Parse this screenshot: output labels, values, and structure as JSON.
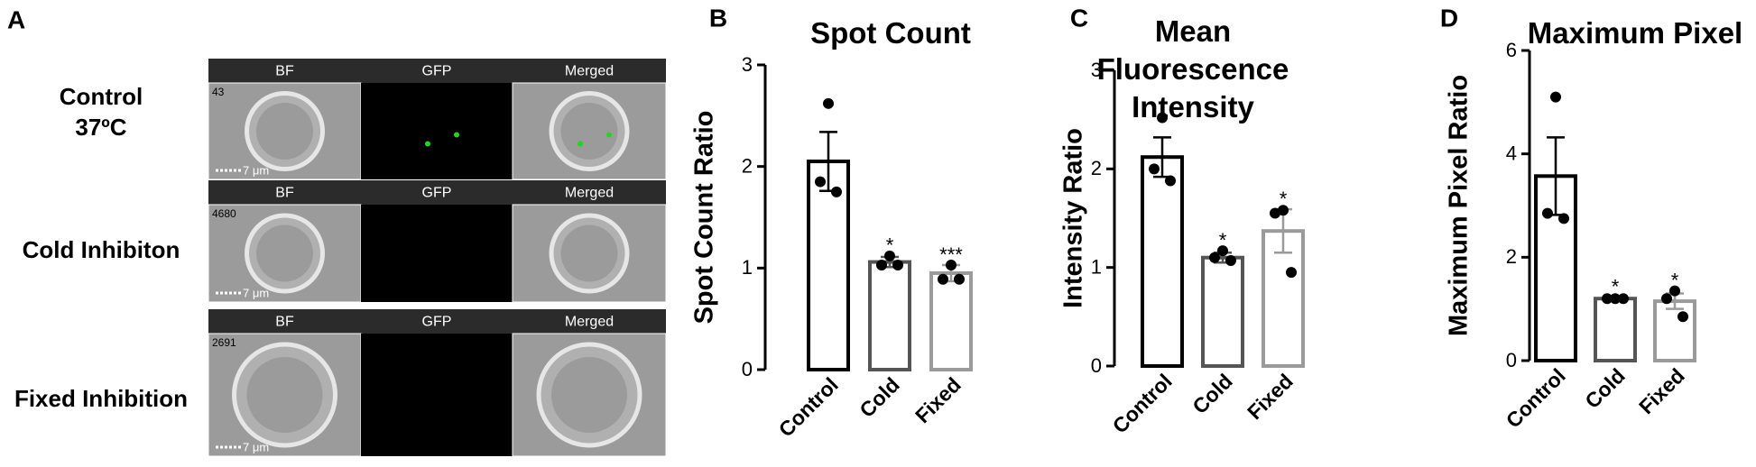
{
  "panel_a": {
    "label": "A",
    "columns": [
      "BF",
      "GFP",
      "Merged"
    ],
    "rows": [
      {
        "label_lines": [
          "Control",
          "37ºC"
        ],
        "id": "43",
        "scale": "7 μm"
      },
      {
        "label_lines": [
          "Cold Inhibiton"
        ],
        "id": "4680",
        "scale": "7 μm"
      },
      {
        "label_lines": [
          "Fixed Inhibition"
        ],
        "id": "2691",
        "scale": "7 μm"
      }
    ]
  },
  "chart_data": [
    {
      "type": "bar",
      "panel_label": "B",
      "title": "Spot Count",
      "y_label": "Spot Count Ratio",
      "categories": [
        "Control",
        "Cold",
        "Fixed"
      ],
      "colors": [
        "#000000",
        "#555555",
        "#9a9a9a"
      ],
      "values": [
        2.05,
        1.06,
        0.95
      ],
      "errors": [
        0.29,
        0.05,
        0.08
      ],
      "points": [
        [
          2.62,
          1.85,
          1.75
        ],
        [
          1.12,
          1.03,
          1.03
        ],
        [
          1.03,
          0.89,
          0.89
        ]
      ],
      "annotations": [
        null,
        "*",
        "***"
      ],
      "ylim": [
        0,
        3
      ],
      "yticks": [
        0,
        1,
        2,
        3
      ]
    },
    {
      "type": "bar",
      "panel_label": "C",
      "title": "Mean Fluorescence Intensity",
      "y_label": "Intensity Ratio",
      "categories": [
        "Control",
        "Cold",
        "Fixed"
      ],
      "colors": [
        "#000000",
        "#555555",
        "#9a9a9a"
      ],
      "values": [
        2.12,
        1.1,
        1.37
      ],
      "errors": [
        0.2,
        0.05,
        0.22
      ],
      "points": [
        [
          2.52,
          2.0,
          1.88
        ],
        [
          1.17,
          1.1,
          1.07
        ],
        [
          1.58,
          1.55,
          0.95
        ]
      ],
      "annotations": [
        null,
        "*",
        "*"
      ],
      "ylim": [
        0,
        3
      ],
      "yticks": [
        0,
        1,
        2,
        3
      ]
    },
    {
      "type": "bar",
      "panel_label": "D",
      "title": "Maximum Pixel",
      "y_label": "Maximum Pixel Ratio",
      "categories": [
        "Control",
        "Cold",
        "Fixed"
      ],
      "colors": [
        "#000000",
        "#555555",
        "#9a9a9a"
      ],
      "values": [
        3.57,
        1.2,
        1.15
      ],
      "errors": [
        0.75,
        0.03,
        0.15
      ],
      "points": [
        [
          5.1,
          2.85,
          2.75
        ],
        [
          1.2,
          1.2,
          1.2
        ],
        [
          1.35,
          1.2,
          0.85
        ]
      ],
      "annotations": [
        null,
        "*",
        "*"
      ],
      "ylim": [
        0,
        6
      ],
      "yticks": [
        0,
        2,
        4,
        6
      ]
    }
  ]
}
